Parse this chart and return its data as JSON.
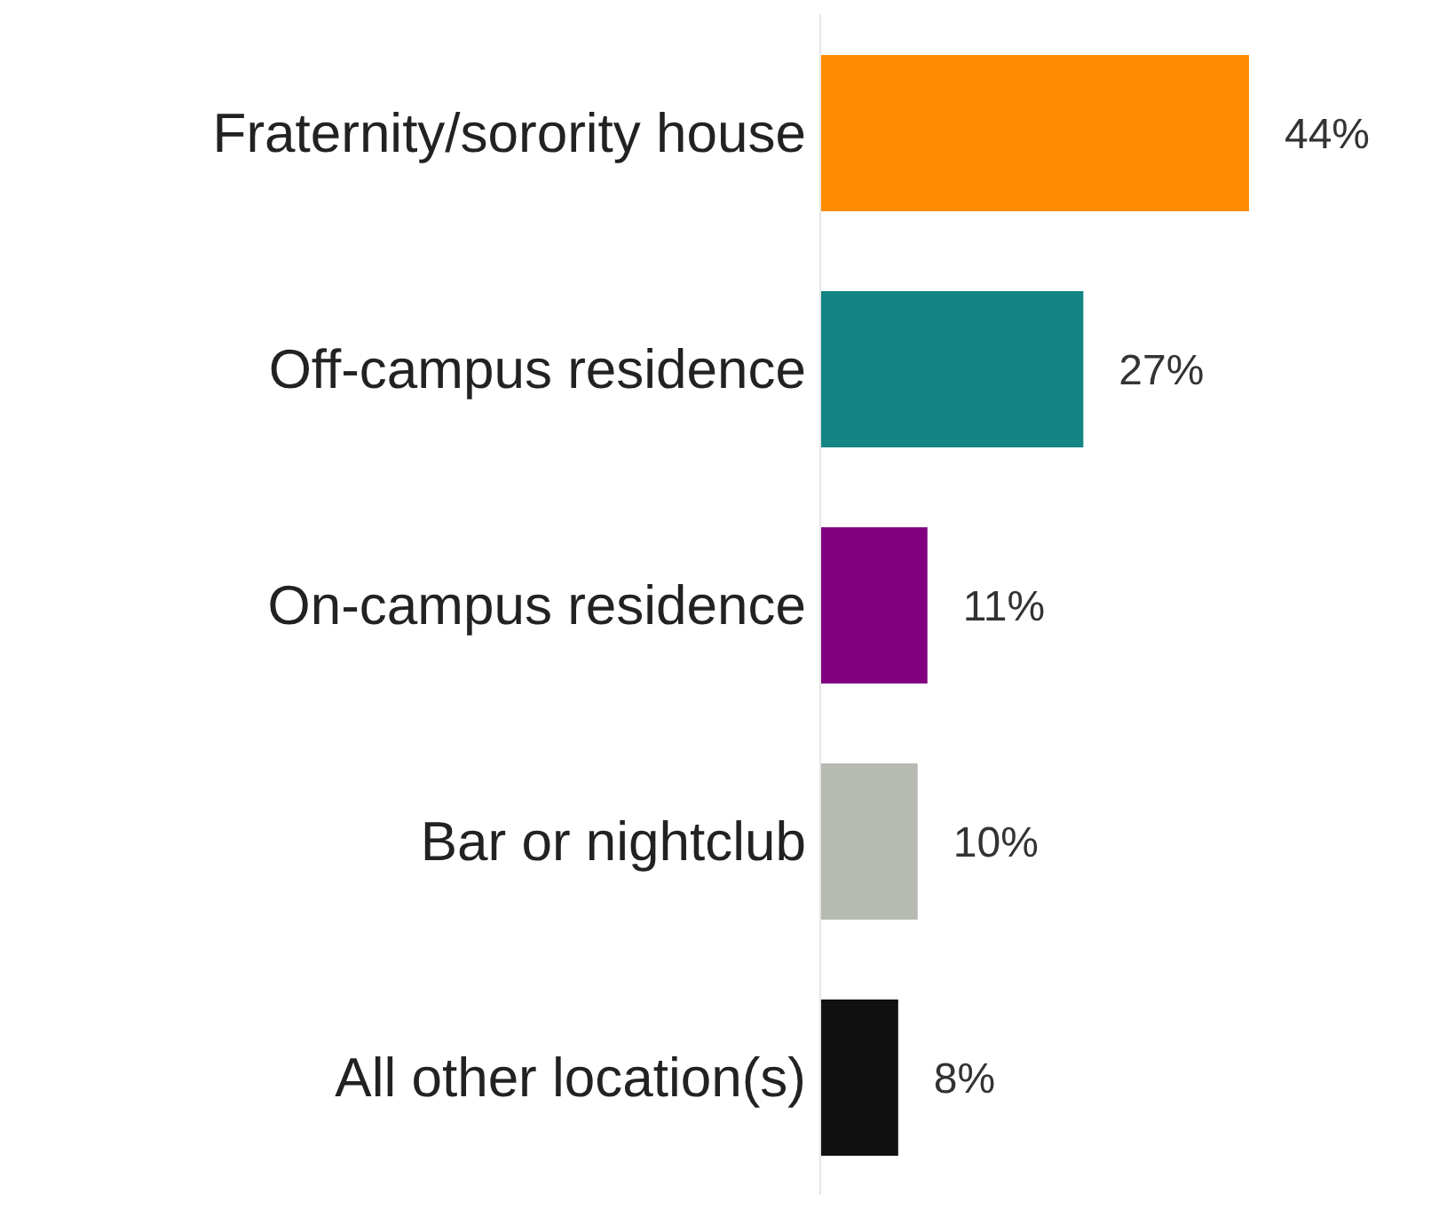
{
  "chart_data": {
    "type": "bar",
    "orientation": "horizontal",
    "categories": [
      "Fraternity/sorority house",
      "Off-campus residence",
      "On-campus residence",
      "Bar or nightclub",
      "All other location(s)"
    ],
    "values": [
      44,
      27,
      11,
      10,
      8
    ],
    "colors": [
      "#ff8c00",
      "#138585",
      "#800080",
      "#b6bab2",
      "#111111"
    ],
    "value_labels": [
      "44%",
      "27%",
      "11%",
      "10%",
      "8%"
    ]
  }
}
